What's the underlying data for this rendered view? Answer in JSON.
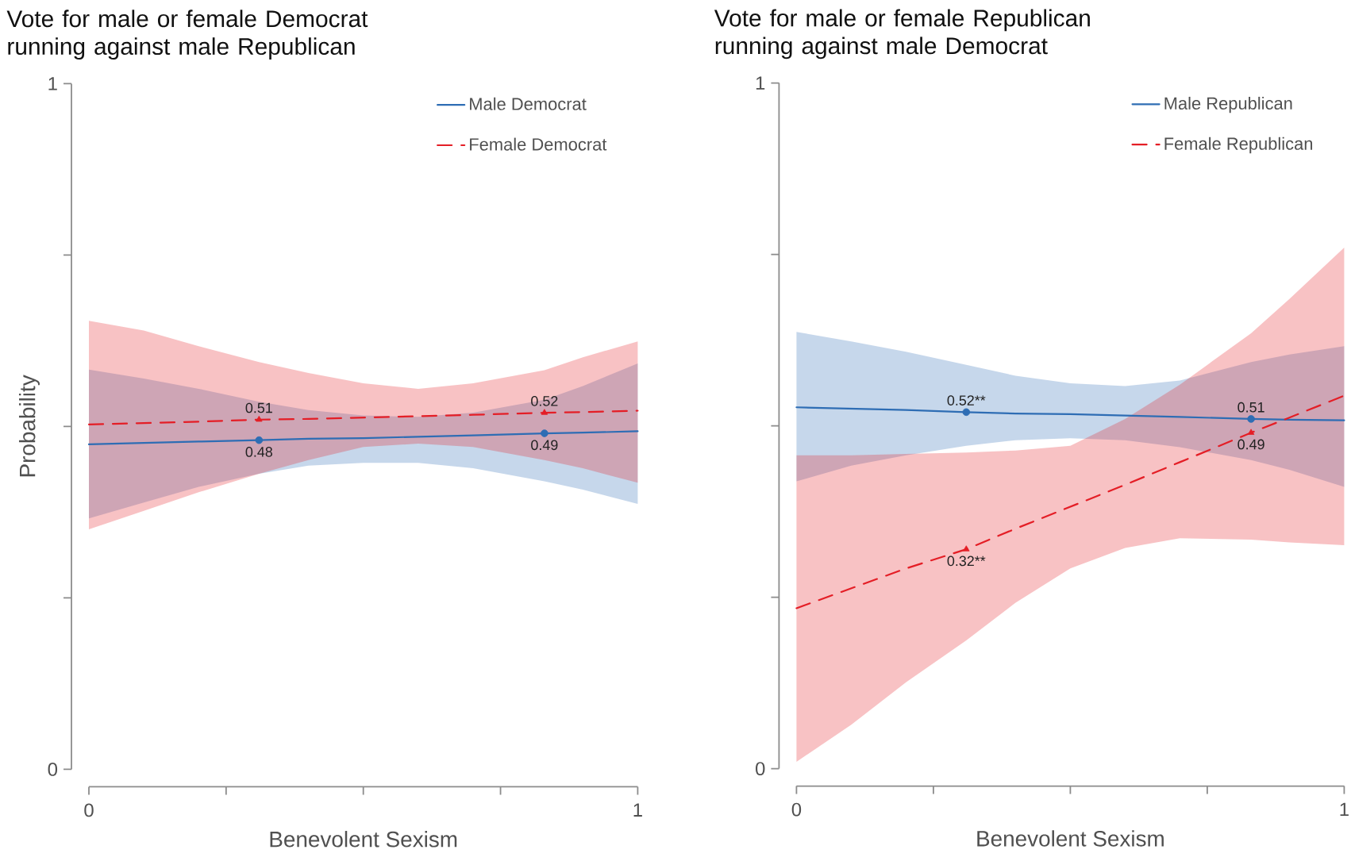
{
  "chart_data": [
    {
      "type": "line",
      "title": "Vote for male or female Democrat running against male Republican",
      "xlabel": "Benevolent Sexism",
      "ylabel": "Probability",
      "xlim": [
        0,
        1
      ],
      "ylim": [
        0,
        1
      ],
      "xticks": [
        0,
        {
          "value": 0.25,
          "label": null
        },
        {
          "value": 0.5,
          "label": null
        },
        {
          "value": 0.75,
          "label": null
        },
        1
      ],
      "yticks": [
        0,
        {
          "value": 0.25,
          "label": null
        },
        {
          "value": 0.5,
          "label": null
        },
        {
          "value": 0.75,
          "label": null
        },
        1
      ],
      "legend": "top right",
      "series": [
        {
          "name": "Male Democrat",
          "color": "#2e6db4",
          "line_style": "solid",
          "x": [
            0,
            0.1,
            0.2,
            0.31,
            0.4,
            0.5,
            0.6,
            0.7,
            0.83,
            0.9,
            1
          ],
          "values": [
            0.474,
            0.476,
            0.478,
            0.48,
            0.482,
            0.483,
            0.485,
            0.487,
            0.49,
            0.491,
            0.493
          ],
          "lower": [
            0.366,
            0.389,
            0.412,
            0.431,
            0.443,
            0.447,
            0.447,
            0.439,
            0.42,
            0.408,
            0.387
          ],
          "upper": [
            0.583,
            0.57,
            0.555,
            0.536,
            0.524,
            0.516,
            0.514,
            0.52,
            0.539,
            0.559,
            0.592
          ]
        },
        {
          "name": "Female Democrat",
          "color": "#e41e26",
          "line_style": "dashed",
          "x": [
            0,
            0.1,
            0.2,
            0.31,
            0.4,
            0.5,
            0.6,
            0.7,
            0.83,
            0.9,
            1
          ],
          "values": [
            0.503,
            0.505,
            0.507,
            0.51,
            0.511,
            0.513,
            0.515,
            0.517,
            0.52,
            0.521,
            0.523
          ],
          "lower": [
            0.35,
            0.377,
            0.404,
            0.431,
            0.451,
            0.47,
            0.475,
            0.47,
            0.451,
            0.439,
            0.418
          ],
          "upper": [
            0.654,
            0.64,
            0.617,
            0.594,
            0.578,
            0.563,
            0.555,
            0.563,
            0.582,
            0.601,
            0.624
          ]
        },
        {
          "type": "scatter",
          "color": "#2e6db4",
          "marker": "circle",
          "x": [
            0.31,
            0.83
          ],
          "values": [
            0.48,
            0.49
          ],
          "value_labels": [
            "0.48",
            "0.49"
          ]
        },
        {
          "type": "scatter",
          "color": "#e41e26",
          "marker": "triangle",
          "x": [
            0.31,
            0.83
          ],
          "values": [
            0.51,
            0.52
          ],
          "value_labels": [
            "0.51",
            "0.52"
          ]
        }
      ]
    },
    {
      "type": "line",
      "title": "Vote for male or female Republican running against male Democrat",
      "xlabel": "Benevolent Sexism",
      "xlim": [
        0,
        1
      ],
      "ylim": [
        0,
        1
      ],
      "xticks": [
        0,
        {
          "value": 0.25,
          "label": null
        },
        {
          "value": 0.5,
          "label": null
        },
        {
          "value": 0.75,
          "label": null
        },
        1
      ],
      "yticks": [
        0,
        {
          "value": 0.25,
          "label": null
        },
        {
          "value": 0.5,
          "label": null
        },
        {
          "value": 0.75,
          "label": null
        },
        1
      ],
      "legend": "top right",
      "series": [
        {
          "name": "Male Republican",
          "color": "#2e6db4",
          "line_style": "solid",
          "x": [
            0,
            0.1,
            0.2,
            0.31,
            0.4,
            0.5,
            0.6,
            0.7,
            0.83,
            0.9,
            1
          ],
          "values": [
            0.527,
            0.525,
            0.523,
            0.52,
            0.518,
            0.517,
            0.515,
            0.513,
            0.51,
            0.509,
            0.508
          ],
          "lower": [
            0.419,
            0.442,
            0.457,
            0.471,
            0.479,
            0.482,
            0.479,
            0.469,
            0.45,
            0.436,
            0.411
          ],
          "upper": [
            0.637,
            0.623,
            0.608,
            0.589,
            0.573,
            0.562,
            0.558,
            0.566,
            0.593,
            0.604,
            0.616
          ]
        },
        {
          "name": "Female Republican",
          "color": "#e41e26",
          "line_style": "dashed",
          "x": [
            0,
            0.1,
            0.2,
            0.31,
            0.4,
            0.5,
            0.6,
            0.7,
            0.83,
            0.9,
            1
          ],
          "values": [
            0.234,
            0.263,
            0.292,
            0.32,
            0.35,
            0.382,
            0.414,
            0.447,
            0.49,
            0.512,
            0.544
          ],
          "lower": [
            0.01,
            0.064,
            0.126,
            0.187,
            0.242,
            0.292,
            0.322,
            0.336,
            0.334,
            0.33,
            0.326
          ],
          "upper": [
            0.457,
            0.457,
            0.459,
            0.461,
            0.464,
            0.471,
            0.51,
            0.56,
            0.635,
            0.685,
            0.76
          ]
        },
        {
          "type": "scatter",
          "color": "#2e6db4",
          "marker": "circle",
          "x": [
            0.31,
            0.83
          ],
          "values": [
            0.52,
            0.51
          ],
          "value_labels": [
            "0.52**",
            "0.51"
          ]
        },
        {
          "type": "scatter",
          "color": "#e41e26",
          "marker": "triangle",
          "x": [
            0.31,
            0.83
          ],
          "values": [
            0.32,
            0.49
          ],
          "value_labels": [
            "0.32**",
            "0.49"
          ]
        }
      ]
    }
  ]
}
